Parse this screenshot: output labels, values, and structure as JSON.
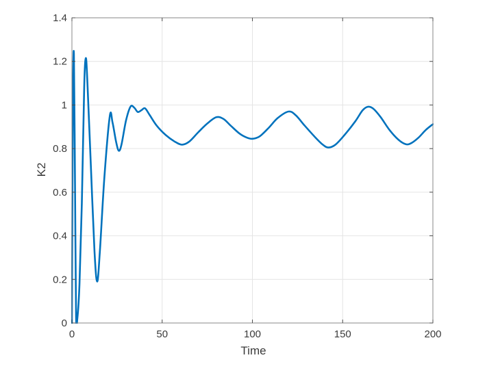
{
  "figure": {
    "background": "#ffffff"
  },
  "chart_data": {
    "type": "line",
    "title": "",
    "xlabel": "Time",
    "ylabel": "K2",
    "xlim": [
      0,
      200
    ],
    "ylim": [
      0,
      1.4
    ],
    "xticks": [
      0,
      50,
      100,
      150,
      200
    ],
    "yticks": [
      0,
      0.2,
      0.4,
      0.6,
      0.8,
      1,
      1.2,
      1.4
    ],
    "grid": true,
    "legend": null,
    "series": [
      {
        "name": "K2",
        "color": "#0072BD",
        "line_width": 2.6,
        "x": [
          0,
          0.5,
          1.1,
          1.7,
          2.3,
          3.0,
          4.2,
          5.5,
          6.8,
          7.7,
          8.6,
          10.5,
          12.5,
          14,
          15.5,
          18,
          21,
          22.5,
          24.5,
          26,
          27.5,
          30,
          32.5,
          34.5,
          36.5,
          38.5,
          40.5,
          43,
          47,
          52,
          57,
          61,
          65,
          70,
          75,
          80,
          84,
          88,
          93,
          97,
          100,
          104,
          109,
          114,
          120,
          124,
          129,
          135,
          139,
          142,
          146,
          151,
          157,
          161,
          164,
          167,
          171,
          176,
          181,
          185,
          188,
          192,
          196,
          200
        ],
        "y": [
          0,
          0.97,
          1.235,
          0.65,
          0.03,
          0.02,
          0.18,
          0.55,
          1.08,
          1.215,
          1.1,
          0.72,
          0.33,
          0.19,
          0.33,
          0.67,
          0.95,
          0.92,
          0.83,
          0.79,
          0.82,
          0.93,
          0.993,
          0.988,
          0.968,
          0.976,
          0.985,
          0.955,
          0.905,
          0.862,
          0.832,
          0.818,
          0.832,
          0.875,
          0.915,
          0.944,
          0.936,
          0.905,
          0.868,
          0.85,
          0.845,
          0.856,
          0.895,
          0.94,
          0.97,
          0.953,
          0.905,
          0.85,
          0.818,
          0.805,
          0.818,
          0.862,
          0.925,
          0.975,
          0.992,
          0.983,
          0.945,
          0.885,
          0.84,
          0.82,
          0.825,
          0.85,
          0.885,
          0.912
        ]
      }
    ],
    "style": {
      "line_color": "#0072BD",
      "box_color": "#878787",
      "tick_color": "#4d4d4d",
      "grid_color": "#e4e4e4",
      "label_color": "#3a3a3a",
      "tick_font_size": 15
    }
  }
}
